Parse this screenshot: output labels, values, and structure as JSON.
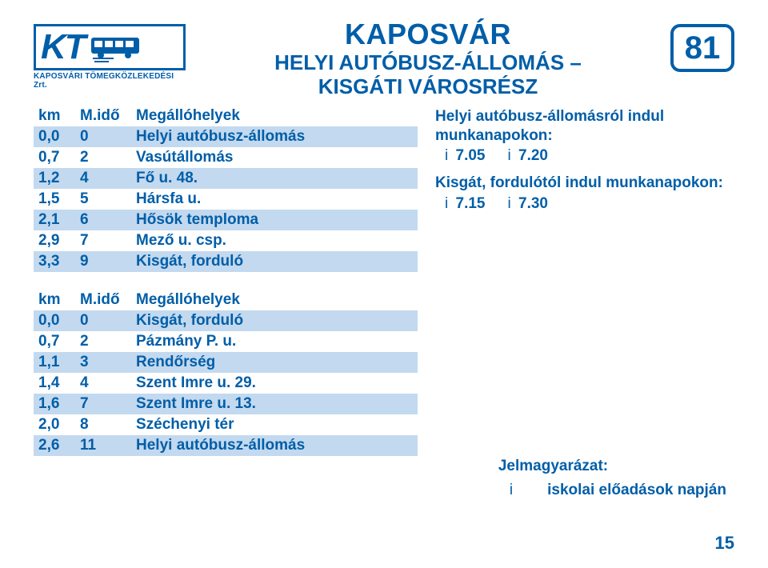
{
  "colors": {
    "primary": "#005ea8",
    "stripe": "#c3d9ef",
    "background": "#ffffff"
  },
  "logo": {
    "text": "KT",
    "subtitle": "KAPOSVÁRI TÖMEGKÖZLEKEDÉSI Zrt."
  },
  "header": {
    "city": "KAPOSVÁR",
    "route_line1": "HELYI AUTÓBUSZ-ÁLLOMÁS –",
    "route_line2": "KISGÁTI VÁROSRÉSZ",
    "line_number": "81"
  },
  "columns": {
    "km": "km",
    "mido": "M.idő",
    "stop": "Megállóhelyek"
  },
  "stops_outbound": [
    {
      "km": "0,0",
      "mido": "0",
      "name": "Helyi autóbusz-állomás"
    },
    {
      "km": "0,7",
      "mido": "2",
      "name": "Vasútállomás"
    },
    {
      "km": "1,2",
      "mido": "4",
      "name": "Fő u. 48."
    },
    {
      "km": "1,5",
      "mido": "5",
      "name": "Hársfa u."
    },
    {
      "km": "2,1",
      "mido": "6",
      "name": "Hősök temploma"
    },
    {
      "km": "2,9",
      "mido": "7",
      "name": "Mező u. csp."
    },
    {
      "km": "3,3",
      "mido": "9",
      "name": "Kisgát, forduló"
    }
  ],
  "stops_inbound": [
    {
      "km": "0,0",
      "mido": "0",
      "name": "Kisgát, forduló"
    },
    {
      "km": "0,7",
      "mido": "2",
      "name": "Pázmány P. u."
    },
    {
      "km": "1,1",
      "mido": "3",
      "name": "Rendőrség"
    },
    {
      "km": "1,4",
      "mido": "4",
      "name": "Szent Imre u. 29."
    },
    {
      "km": "1,6",
      "mido": "7",
      "name": "Szent Imre u. 13."
    },
    {
      "km": "2,0",
      "mido": "8",
      "name": "Széchenyi tér"
    },
    {
      "km": "2,6",
      "mido": "11",
      "name": "Helyi autóbusz-állomás"
    }
  ],
  "departures": {
    "block1": {
      "title_l1": "Helyi autóbusz-állomásról indul",
      "title_l2": "munkanapokon:",
      "prefix": "i",
      "times": [
        "7.05",
        "7.20"
      ]
    },
    "block2": {
      "title": "Kisgát, fordulótól indul munkanapokon:",
      "prefix": "i",
      "times": [
        "7.15",
        "7.30"
      ]
    }
  },
  "legend": {
    "title": "Jelmagyarázat:",
    "key": "i",
    "text": "iskolai előadások napján"
  },
  "page_number": "15"
}
